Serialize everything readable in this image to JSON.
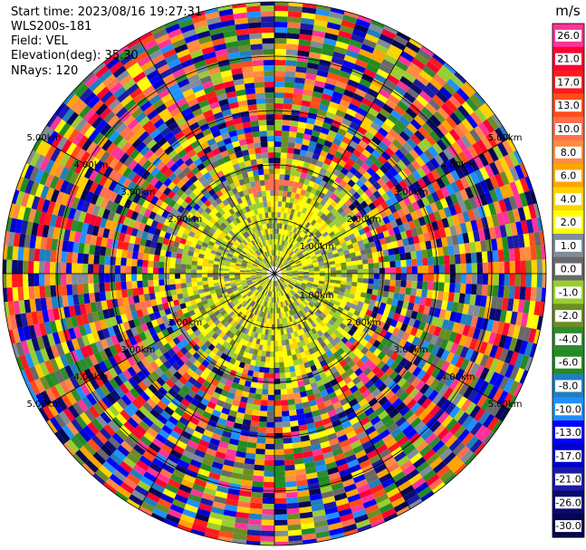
{
  "header": {
    "start_time": "Start time: 2023/08/16 19:27:31",
    "instrument": "WLS200s-181",
    "field": "Field: VEL",
    "elevation": "Elevation(deg): 35.30",
    "nrays": "NRays: 120"
  },
  "chart_data": {
    "type": "heatmap",
    "projection": "polar-ppi",
    "title": "",
    "field": "VEL",
    "units": "m/s",
    "colorbar": {
      "orientation": "vertical",
      "placement": "right",
      "ticks": [
        "26.0",
        "21.0",
        "17.0",
        "13.0",
        "10.0",
        "8.0",
        "6.0",
        "4.0",
        "2.0",
        "1.0",
        "0.0",
        "-1.0",
        "-2.0",
        "-4.0",
        "-6.0",
        "-8.0",
        "-10.0",
        "-13.0",
        "-17.0",
        "-21.0",
        "-26.0",
        "-30.0"
      ],
      "colors": [
        "#ff3399",
        "#ff0033",
        "#ff1a1a",
        "#ff4d1a",
        "#ff704d",
        "#ff8c40",
        "#ffa500",
        "#ffd200",
        "#ffff00",
        "#7f8c99",
        "#696969",
        "#9acd32",
        "#6b8e23",
        "#2e8b2e",
        "#228b22",
        "#1f7fbf",
        "#1e90ff",
        "#0000ff",
        "#0000cd",
        "#1a1aa6",
        "#0a0a70",
        "#050550"
      ]
    },
    "range_rings_km": [
      "1.00km",
      "2.00km",
      "3.00km",
      "4.00km",
      "5.00km"
    ],
    "ring_labels": [
      "1.00km",
      "1.00km",
      "2.00km",
      "2.00km",
      "2.00km",
      "2.00km",
      "3.00km",
      "3.00km",
      "3.00km",
      "3.00km",
      "4.00km",
      "4.00km",
      "4.00km",
      "4.00km",
      "5.00km",
      "5.00km",
      "5.00km",
      "5.00km"
    ],
    "nrays": 120,
    "center_region": {
      "dominant_values": [
        "2.0",
        "0.0",
        "-1.0"
      ],
      "description_values": "near-zero to small positive velocities within ~2 km"
    },
    "outer_region": "noise: values spanning full range -30 to 26"
  }
}
